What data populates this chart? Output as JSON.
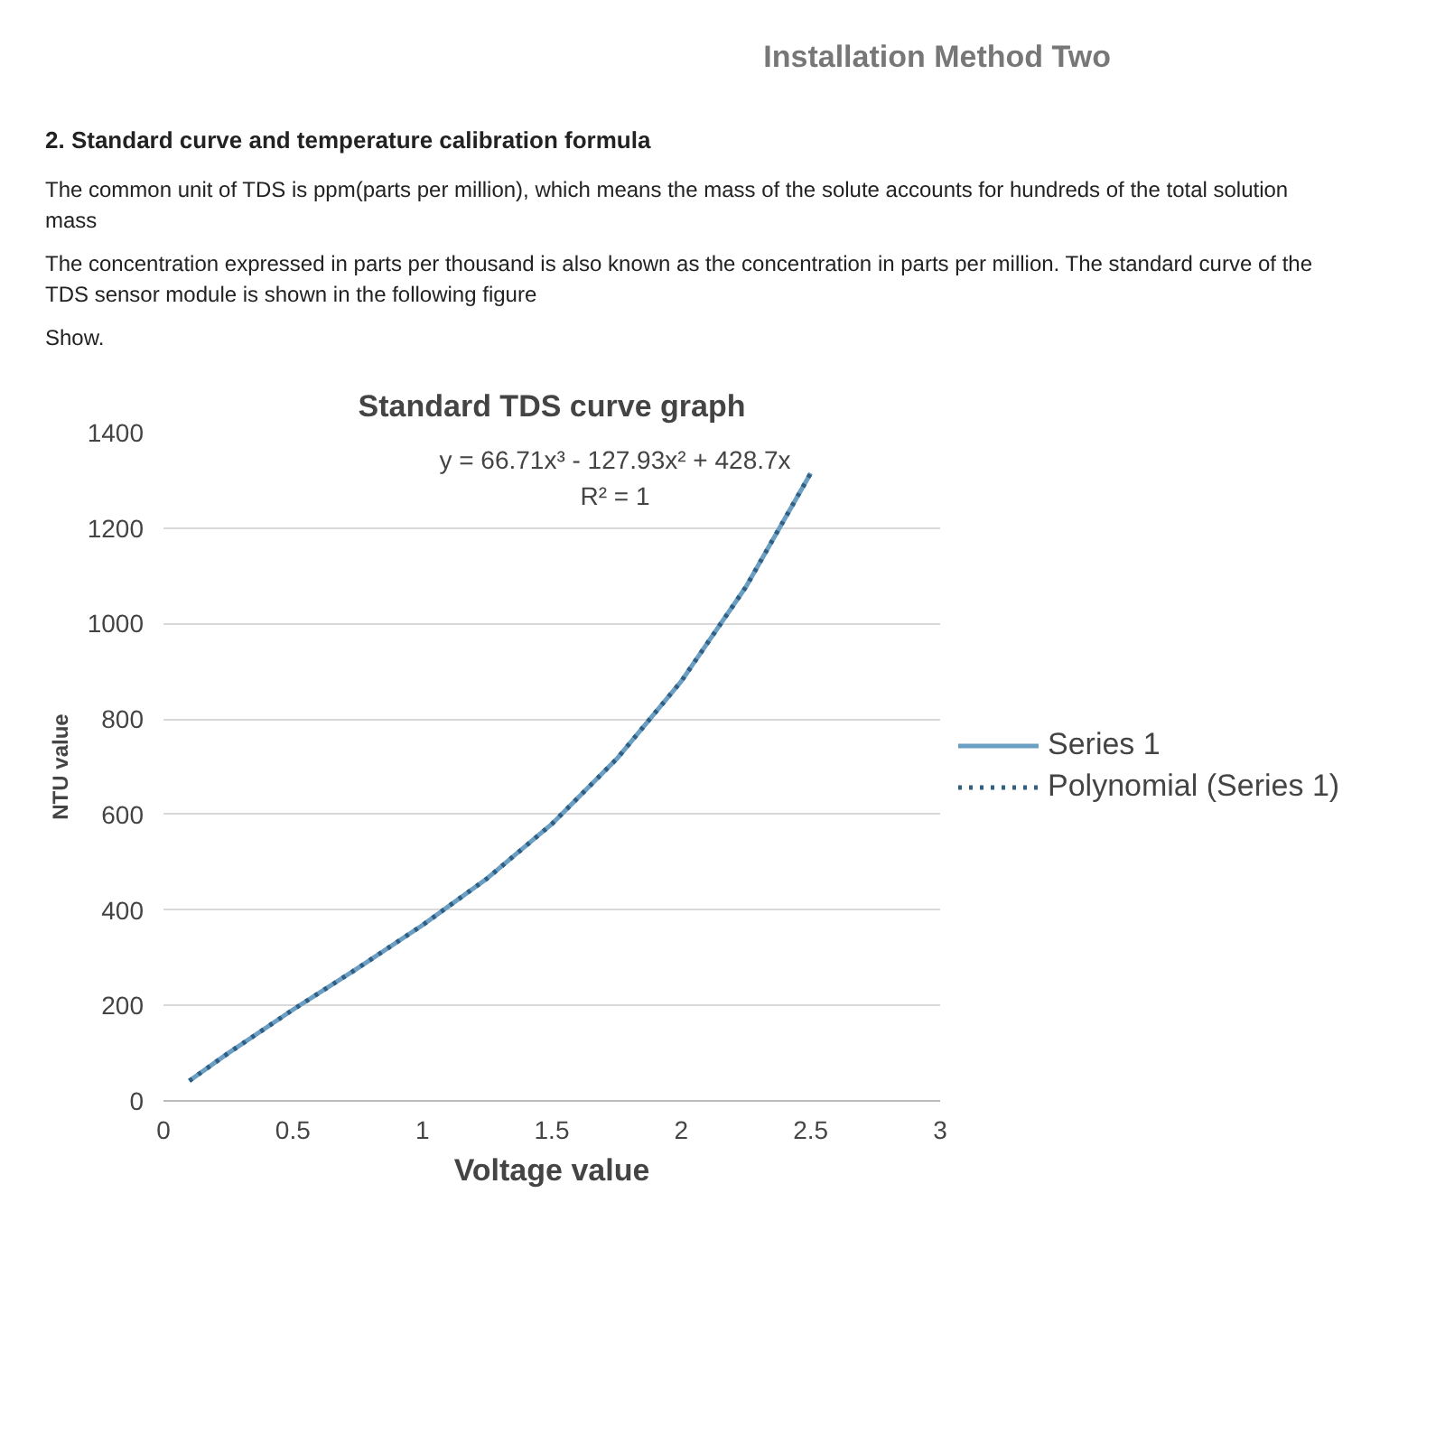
{
  "chart_data": {
    "type": "line",
    "title": "Standard TDS curve graph",
    "xlabel": "Voltage value",
    "ylabel": "NTU value",
    "x": [
      0.1,
      0.25,
      0.5,
      0.75,
      1,
      1.25,
      1.5,
      1.75,
      2,
      2.25,
      2.5
    ],
    "series": [
      {
        "name": "Series 1",
        "color": "#6a9ec2",
        "line_style": "solid",
        "values": [
          42,
          100,
          191,
          278,
          368,
          466,
          580,
          716,
          879,
          1077,
          1315
        ]
      },
      {
        "name": "Polynomial (Series 1)",
        "color": "#2f5f85",
        "line_style": "dotted",
        "values": [
          42,
          100,
          191,
          278,
          368,
          466,
          580,
          716,
          879,
          1077,
          1315
        ]
      }
    ],
    "xlim": [
      0,
      3
    ],
    "xticks": [
      0,
      0.5,
      1,
      1.5,
      2,
      2.5,
      3
    ],
    "ylim": [
      0,
      1400
    ],
    "yticks": [
      0,
      200,
      400,
      600,
      800,
      1000,
      1200,
      1400
    ],
    "grid": "y",
    "legend": "right",
    "marker": "none",
    "annotations": [
      "Installation Method Two",
      "2. Standard curve and temperature calibration formula",
      "The common unit of TDS is ppm(parts per million), which means the mass of the solute accounts for hundreds of the total solution mass",
      "The concentration expressed in parts per thousand is also known as the concentration in parts per million. The standard curve of the TDS sensor module is shown in the following figure",
      "Show.",
      "y = 66.71x³ - 127.93x² + 428.7x",
      "R² = 1"
    ]
  }
}
